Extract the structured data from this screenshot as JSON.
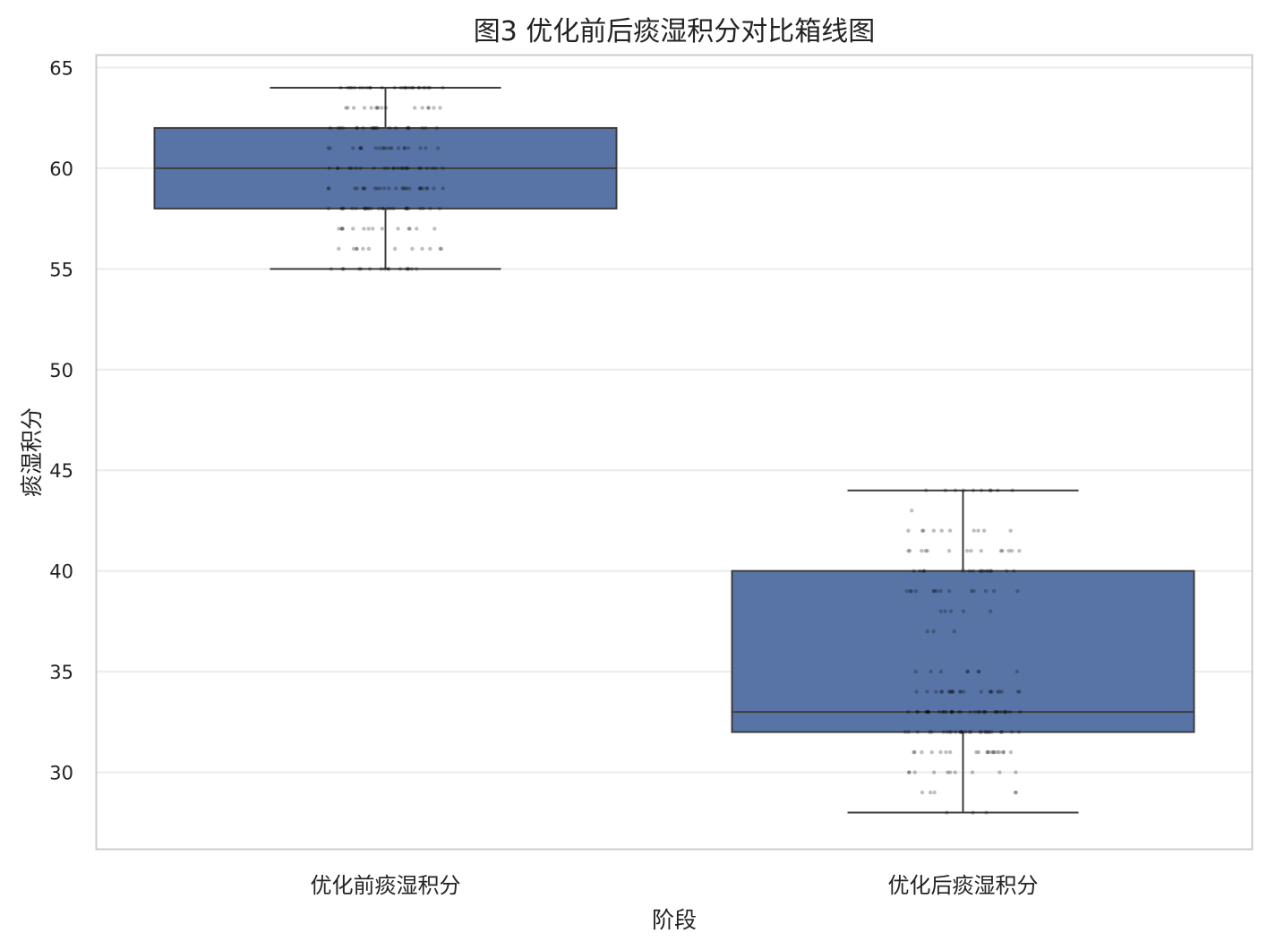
{
  "chart_data": {
    "type": "box",
    "title": "图3 优化前后痰湿积分对比箱线图",
    "xlabel": "阶段",
    "ylabel": "痰湿积分",
    "ylim": [
      26.2,
      65.6
    ],
    "yticks": [
      30,
      35,
      40,
      45,
      50,
      55,
      60,
      65
    ],
    "grid": "horizontal",
    "legend": "none",
    "box_color": "#5874a6",
    "line_color": "#3d3d3d",
    "point_color": "#000000",
    "categories": [
      "优化前痰湿积分",
      "优化后痰湿积分"
    ],
    "boxes": [
      {
        "category": "优化前痰湿积分",
        "whisker_low": 55,
        "q1": 58,
        "median": 60,
        "q3": 62,
        "whisker_high": 64,
        "points": [
          {
            "y": 64,
            "n": 26
          },
          {
            "y": 63,
            "n": 16
          },
          {
            "y": 62,
            "n": 20
          },
          {
            "y": 61,
            "n": 20
          },
          {
            "y": 60,
            "n": 24
          },
          {
            "y": 59,
            "n": 26
          },
          {
            "y": 58,
            "n": 26
          },
          {
            "y": 57,
            "n": 14
          },
          {
            "y": 56,
            "n": 12
          },
          {
            "y": 55,
            "n": 16
          }
        ]
      },
      {
        "category": "优化后痰湿积分",
        "whisker_low": 28,
        "q1": 32,
        "median": 33,
        "q3": 40,
        "whisker_high": 44,
        "points": [
          {
            "y": 44,
            "n": 10
          },
          {
            "y": 43,
            "n": 1
          },
          {
            "y": 42,
            "n": 10
          },
          {
            "y": 41,
            "n": 14
          },
          {
            "y": 40,
            "n": 16
          },
          {
            "y": 39,
            "n": 14
          },
          {
            "y": 38,
            "n": 5
          },
          {
            "y": 37,
            "n": 3
          },
          {
            "y": 35,
            "n": 8
          },
          {
            "y": 34,
            "n": 22
          },
          {
            "y": 33,
            "n": 34
          },
          {
            "y": 32,
            "n": 28
          },
          {
            "y": 31,
            "n": 20
          },
          {
            "y": 30,
            "n": 10
          },
          {
            "y": 29,
            "n": 5
          },
          {
            "y": 28,
            "n": 3
          }
        ]
      }
    ]
  }
}
